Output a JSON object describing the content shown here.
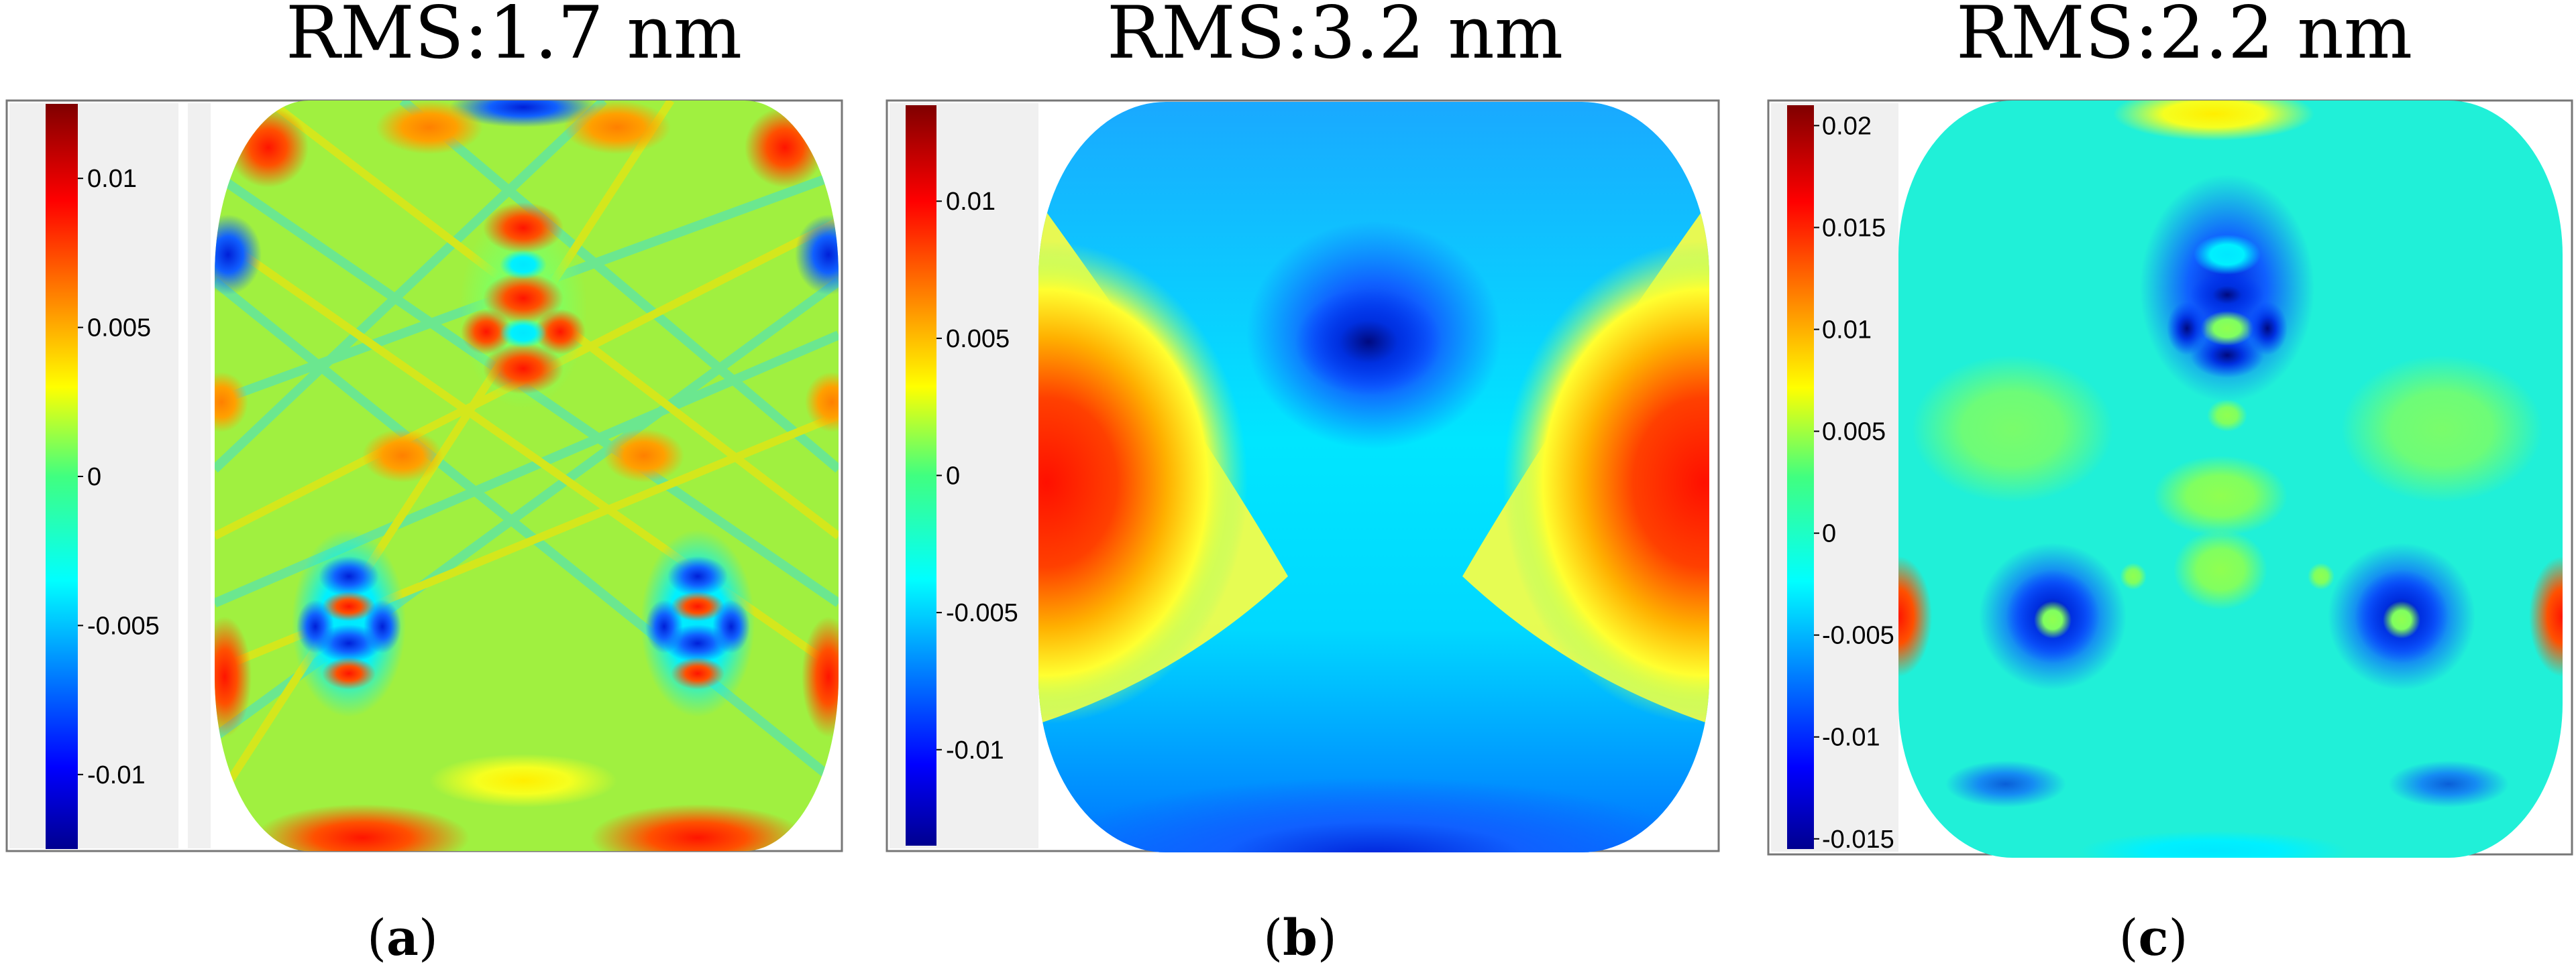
{
  "chart_data": [
    {
      "type": "heatmap",
      "title": "RMS:1.7 nm",
      "label": "a",
      "colormap": "jet",
      "colorbar": {
        "vmin": -0.0125,
        "vmax": 0.0125,
        "ticks": [
          0.01,
          0.005,
          0,
          -0.005,
          -0.01
        ],
        "tick_labels": [
          "0.01",
          "0.005",
          "0",
          "-0.005",
          "-0.01"
        ]
      }
    },
    {
      "type": "heatmap",
      "title": "RMS:3.2 nm",
      "label": "b",
      "colormap": "jet",
      "colorbar": {
        "vmin": -0.0135,
        "vmax": 0.0135,
        "ticks": [
          0.01,
          0.005,
          0,
          -0.005,
          -0.01
        ],
        "tick_labels": [
          "0.01",
          "0.005",
          "0",
          "-0.005",
          "-0.01"
        ]
      }
    },
    {
      "type": "heatmap",
      "title": "RMS:2.2 nm",
      "label": "c",
      "colormap": "jet",
      "colorbar": {
        "vmin": -0.0155,
        "vmax": 0.021,
        "ticks": [
          0.02,
          0.015,
          0.01,
          0.005,
          0,
          -0.005,
          -0.01,
          -0.015
        ],
        "tick_labels": [
          "0.02",
          "0.015",
          "0.01",
          "0.005",
          "0",
          "-0.005",
          "-0.01",
          "-0.015"
        ]
      }
    }
  ]
}
